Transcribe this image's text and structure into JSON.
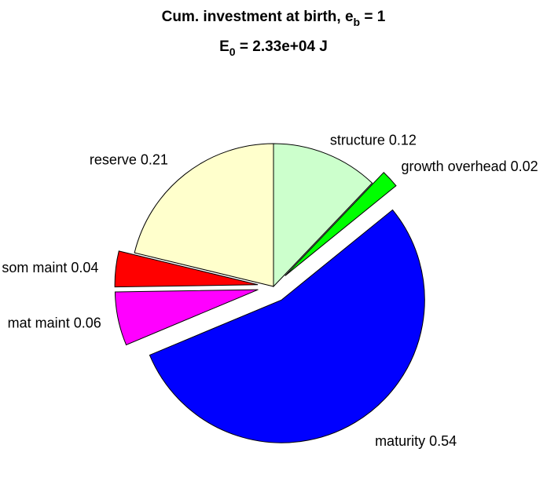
{
  "chart_data": {
    "type": "pie",
    "title": {
      "line1_main": "Cum. investment at birth, e",
      "line1_sub": "b",
      "line1_tail": " = 1",
      "line2_main": "E",
      "line2_sub": "0",
      "line2_tail": " = 2.33e+04 J"
    },
    "slices": [
      {
        "label": "structure 0.12",
        "value": 0.12,
        "color": "#ccffcc",
        "exploded": false
      },
      {
        "label": "growth overhead 0.02",
        "value": 0.02,
        "color": "#00ff00",
        "exploded": true
      },
      {
        "label": "maturity 0.54",
        "value": 0.54,
        "color": "#0000ff",
        "exploded": true
      },
      {
        "label": "mat maint 0.06",
        "value": 0.06,
        "color": "#ff00ff",
        "exploded": true
      },
      {
        "label": "som maint 0.04",
        "value": 0.04,
        "color": "#ff0000",
        "exploded": true
      },
      {
        "label": "reserve 0.21",
        "value": 0.21,
        "color": "#ffffcc",
        "exploded": false
      }
    ],
    "start": "top",
    "direction": "clockwise"
  }
}
